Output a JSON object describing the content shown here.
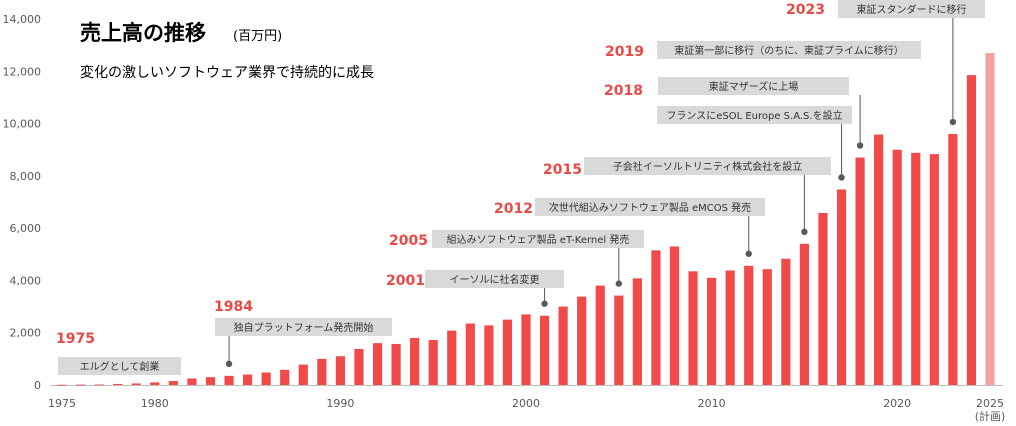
{
  "header": {
    "title": "売上高の推移",
    "title_unit": "(百万円)",
    "subtitle": "変化の激しいソフトウェア業界で持続的に成長"
  },
  "colors": {
    "bar": "#f04a49",
    "bar_plan": "#f3a3a2",
    "year_label": "#e84a47",
    "callout_bg": "#d9d9d9",
    "axis": "#bfbfbf",
    "pointer": "#595959"
  },
  "chart_data": {
    "type": "bar",
    "title": "売上高の推移",
    "unit": "(百万円)",
    "ylim": [
      0,
      14000
    ],
    "yticks": [
      "0",
      "2,000",
      "4,000",
      "6,000",
      "8,000",
      "10,000",
      "12,000",
      "14,000"
    ],
    "xticks": [
      {
        "year": 1975,
        "label": "1975"
      },
      {
        "year": 1980,
        "label": "1980"
      },
      {
        "year": 1990,
        "label": "1990"
      },
      {
        "year": 2000,
        "label": "2000"
      },
      {
        "year": 2010,
        "label": "2010"
      },
      {
        "year": 2020,
        "label": "2020"
      },
      {
        "year": 2025,
        "label": "2025",
        "sublabel": "(計画)"
      }
    ],
    "grid": false,
    "categories": [
      1975,
      1976,
      1977,
      1978,
      1979,
      1980,
      1981,
      1982,
      1983,
      1984,
      1985,
      1986,
      1987,
      1988,
      1989,
      1990,
      1991,
      1992,
      1993,
      1994,
      1995,
      1996,
      1997,
      1998,
      1999,
      2000,
      2001,
      2002,
      2003,
      2004,
      2005,
      2006,
      2007,
      2008,
      2009,
      2010,
      2011,
      2012,
      2013,
      2014,
      2015,
      2016,
      2017,
      2018,
      2019,
      2020,
      2021,
      2022,
      2023,
      2024,
      2025
    ],
    "values": [
      10,
      15,
      20,
      40,
      60,
      100,
      150,
      250,
      300,
      350,
      400,
      480,
      580,
      780,
      1000,
      1100,
      1380,
      1600,
      1570,
      1800,
      1720,
      2080,
      2350,
      2280,
      2500,
      2700,
      2650,
      3000,
      3380,
      3800,
      3420,
      4080,
      5150,
      5300,
      4350,
      4100,
      4380,
      4560,
      4430,
      4830,
      5400,
      6580,
      7480,
      8700,
      9580,
      9000,
      8880,
      8830,
      9600,
      11850,
      12700
    ],
    "plan_years": [
      2025
    ],
    "events": [
      {
        "year": 1975,
        "year_label": "1975",
        "text": "エルグとして創業",
        "marker": false
      },
      {
        "year": 1984,
        "year_label": "1984",
        "text": "独自プラットフォーム発売開始",
        "marker": true
      },
      {
        "year": 2001,
        "year_label": "2001",
        "text": "イーソルに社名変更",
        "marker": true
      },
      {
        "year": 2005,
        "year_label": "2005",
        "text": "組込みソフトウェア製品 eT-Kernel 発売",
        "marker": true
      },
      {
        "year": 2012,
        "year_label": "2012",
        "text": "次世代組込みソフトウェア製品 eMCOS 発売",
        "marker": true
      },
      {
        "year": 2015,
        "year_label": "2015",
        "text": "子会社イーソルトリニティ株式会社を設立",
        "marker": true
      },
      {
        "year": 2017,
        "year_label": "",
        "text": "フランスにeSOL Europe S.A.S.を設立",
        "marker": true
      },
      {
        "year": 2018,
        "year_label": "2018",
        "text": "東証マザーズに上場",
        "marker": true
      },
      {
        "year": 2019,
        "year_label": "2019",
        "text": "東証第一部に移行（のちに、東証プライムに移行）",
        "marker": false
      },
      {
        "year": 2023,
        "year_label": "2023",
        "text": "東証スタンダードに移行",
        "marker": true
      }
    ]
  }
}
